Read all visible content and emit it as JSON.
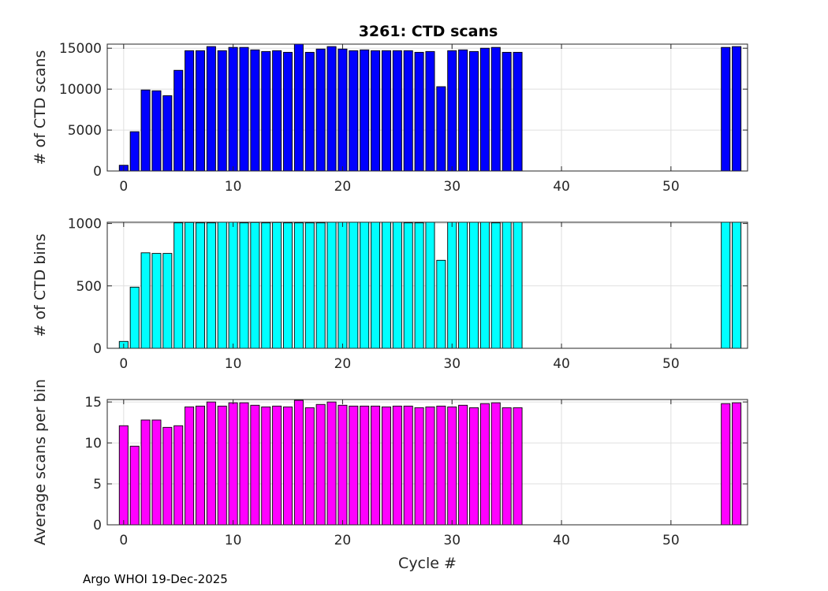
{
  "title": "3261: CTD scans",
  "footer": "Argo WHOI 19-Dec-2025",
  "chart_data": [
    {
      "type": "bar",
      "ylabel": "# of CTD scans",
      "xlabel": "",
      "color": "#0000ff",
      "xlim": [
        -1.5,
        57
      ],
      "ylim": [
        0,
        15500
      ],
      "xticks": [
        0,
        10,
        20,
        30,
        40,
        50
      ],
      "yticks": [
        0,
        5000,
        10000,
        15000
      ],
      "grid": true,
      "x": [
        0,
        1,
        2,
        3,
        4,
        5,
        6,
        7,
        8,
        9,
        10,
        11,
        12,
        13,
        14,
        15,
        16,
        17,
        18,
        19,
        20,
        21,
        22,
        23,
        24,
        25,
        26,
        27,
        28,
        29,
        30,
        31,
        32,
        33,
        34,
        35,
        36,
        55,
        56
      ],
      "values": [
        700,
        4800,
        9900,
        9800,
        9200,
        12300,
        14700,
        14700,
        15200,
        14700,
        15100,
        15100,
        14800,
        14600,
        14700,
        14500,
        15500,
        14500,
        14900,
        15200,
        14900,
        14700,
        14800,
        14700,
        14700,
        14700,
        14700,
        14500,
        14600,
        10300,
        14700,
        14800,
        14600,
        15000,
        15100,
        14500,
        14500,
        15100,
        15200
      ]
    },
    {
      "type": "bar",
      "ylabel": "# of CTD bins",
      "xlabel": "",
      "color": "#00ffff",
      "xlim": [
        -1.5,
        57
      ],
      "ylim": [
        0,
        1010
      ],
      "xticks": [
        0,
        10,
        20,
        30,
        40,
        50
      ],
      "yticks": [
        0,
        500,
        1000
      ],
      "grid": true,
      "x": [
        0,
        1,
        2,
        3,
        4,
        5,
        6,
        7,
        8,
        9,
        10,
        11,
        12,
        13,
        14,
        15,
        16,
        17,
        18,
        19,
        20,
        21,
        22,
        23,
        24,
        25,
        26,
        27,
        28,
        29,
        30,
        31,
        32,
        33,
        34,
        35,
        36,
        55,
        56
      ],
      "values": [
        55,
        490,
        765,
        760,
        760,
        1005,
        1008,
        1005,
        1005,
        1010,
        1010,
        1005,
        1008,
        1005,
        1008,
        1005,
        1005,
        1005,
        1005,
        1010,
        1010,
        1010,
        1010,
        1010,
        1010,
        1010,
        1005,
        1005,
        1010,
        705,
        1010,
        1010,
        1010,
        1010,
        1005,
        1010,
        1010,
        1010,
        1010
      ]
    },
    {
      "type": "bar",
      "ylabel": "Average scans per bin",
      "xlabel": "Cycle #",
      "color": "#ff00ff",
      "xlim": [
        -1.5,
        57
      ],
      "ylim": [
        0,
        15.3
      ],
      "xticks": [
        0,
        10,
        20,
        30,
        40,
        50
      ],
      "yticks": [
        0,
        5,
        10,
        15
      ],
      "grid": true,
      "x": [
        0,
        1,
        2,
        3,
        4,
        5,
        6,
        7,
        8,
        9,
        10,
        11,
        12,
        13,
        14,
        15,
        16,
        17,
        18,
        19,
        20,
        21,
        22,
        23,
        24,
        25,
        26,
        27,
        28,
        29,
        30,
        31,
        32,
        33,
        34,
        35,
        36,
        55,
        56
      ],
      "values": [
        12.1,
        9.6,
        12.8,
        12.8,
        11.9,
        12.1,
        14.4,
        14.5,
        15.0,
        14.5,
        14.9,
        14.9,
        14.6,
        14.4,
        14.5,
        14.4,
        15.2,
        14.3,
        14.7,
        15.0,
        14.6,
        14.5,
        14.5,
        14.5,
        14.4,
        14.5,
        14.5,
        14.3,
        14.4,
        14.5,
        14.4,
        14.6,
        14.3,
        14.8,
        14.9,
        14.3,
        14.3,
        14.8,
        14.9
      ]
    }
  ]
}
